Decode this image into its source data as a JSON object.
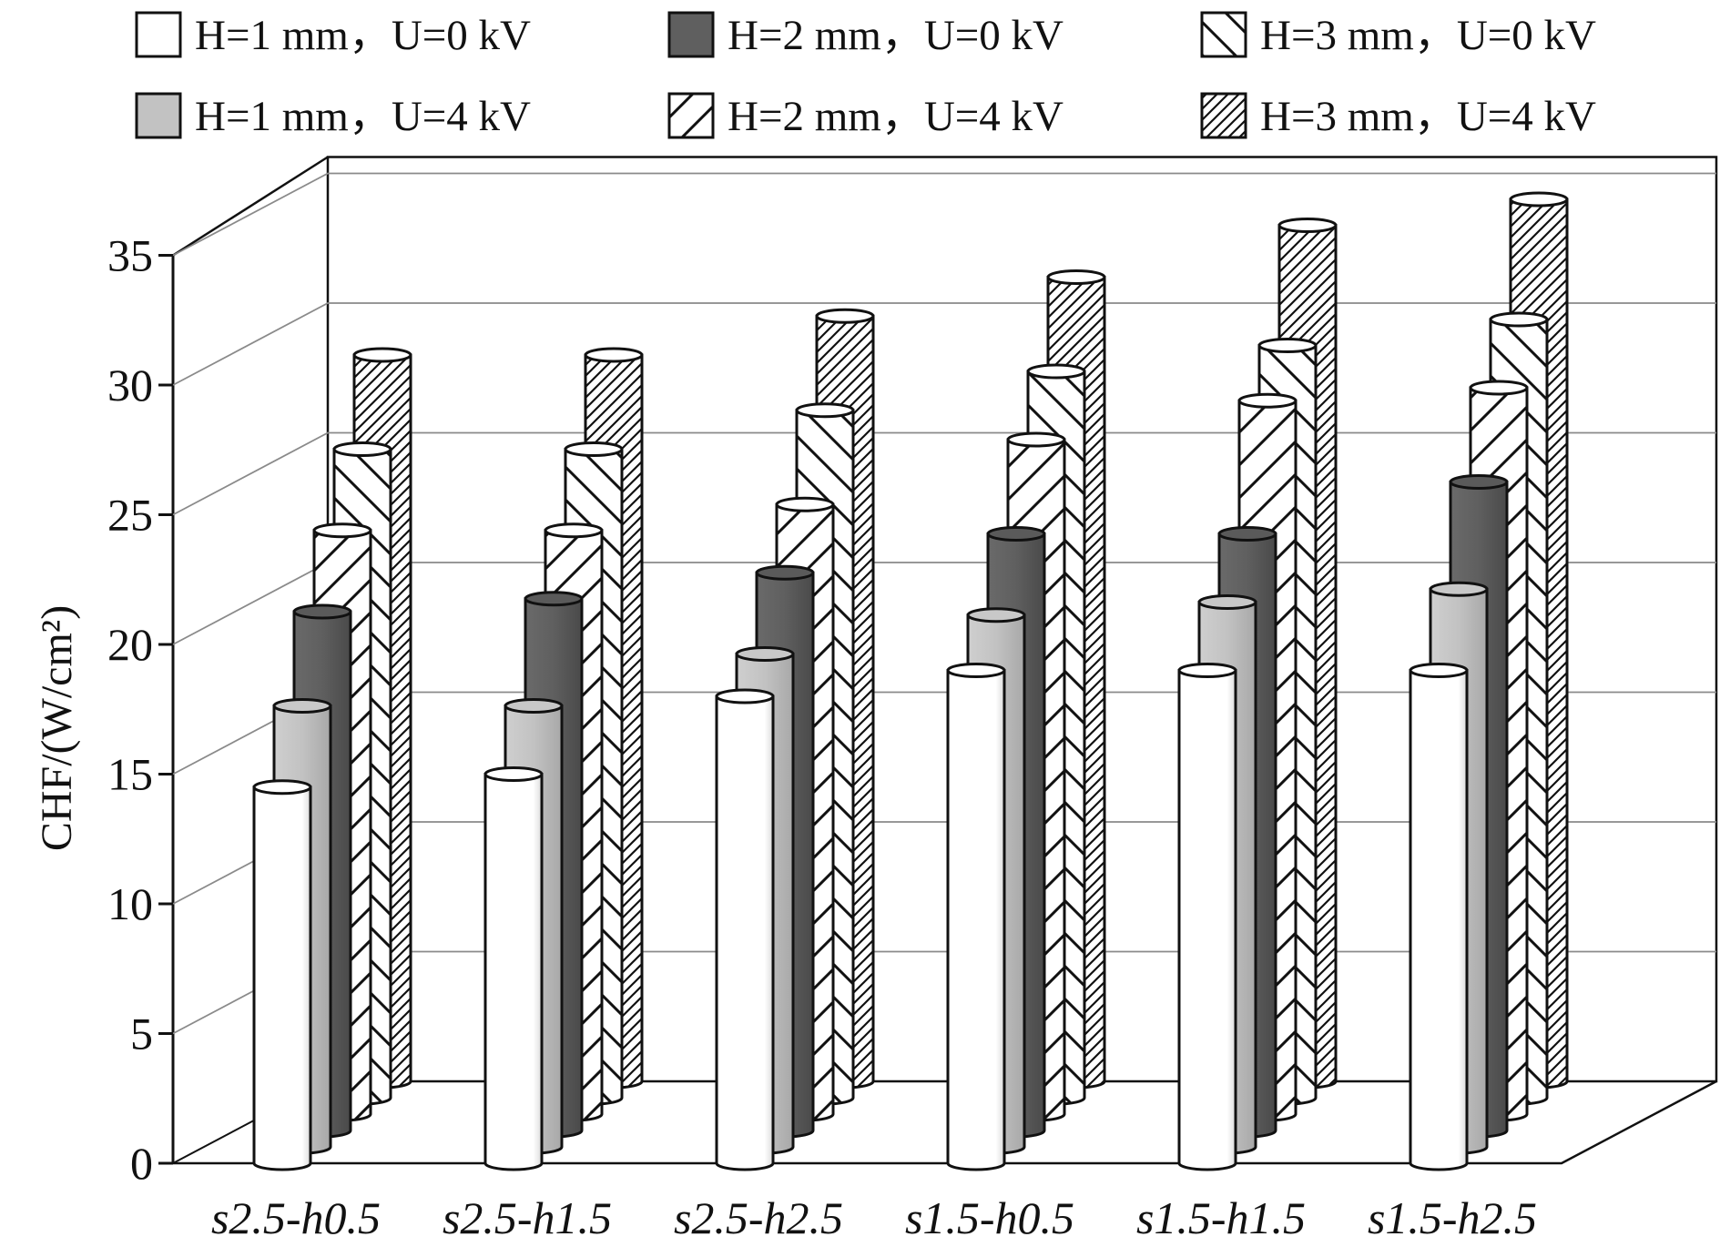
{
  "chart_data": {
    "type": "bar",
    "style": "3d-cylinder",
    "title": "",
    "xlabel": "",
    "ylabel": "CHF/(W/cm²)",
    "ylim": [
      0,
      35
    ],
    "yticks": [
      0,
      5,
      10,
      15,
      20,
      25,
      30,
      35
    ],
    "grid": true,
    "legend_position": "top",
    "categories": [
      "s2.5-h0.5",
      "s2.5-h1.5",
      "s2.5-h2.5",
      "s1.5-h0.5",
      "s1.5-h1.5",
      "s1.5-h2.5"
    ],
    "series": [
      {
        "name": "H=1 mm，U=0 kV",
        "fill": "white",
        "values": [
          14.5,
          15,
          18,
          19,
          19,
          19
        ]
      },
      {
        "name": "H=1 mm，U=4 kV",
        "fill": "lightgray",
        "values": [
          17,
          17,
          19,
          20.5,
          21,
          21.5
        ]
      },
      {
        "name": "H=2 mm，U=0 kV",
        "fill": "darkgray",
        "values": [
          20,
          20.5,
          21.5,
          23,
          23,
          25
        ]
      },
      {
        "name": "H=2 mm，U=4 kV",
        "fill": "slash",
        "values": [
          22.5,
          22.5,
          23.5,
          26,
          27.5,
          28
        ]
      },
      {
        "name": "H=3 mm，U=0 kV",
        "fill": "backslash",
        "values": [
          25,
          25,
          26.5,
          28,
          29,
          30
        ]
      },
      {
        "name": "H=3 mm，U=4 kV",
        "fill": "dense-hatch",
        "values": [
          28,
          28,
          29.5,
          31,
          33,
          34
        ]
      }
    ]
  },
  "legend_label_order": [
    0,
    2,
    4,
    1,
    3,
    5
  ]
}
